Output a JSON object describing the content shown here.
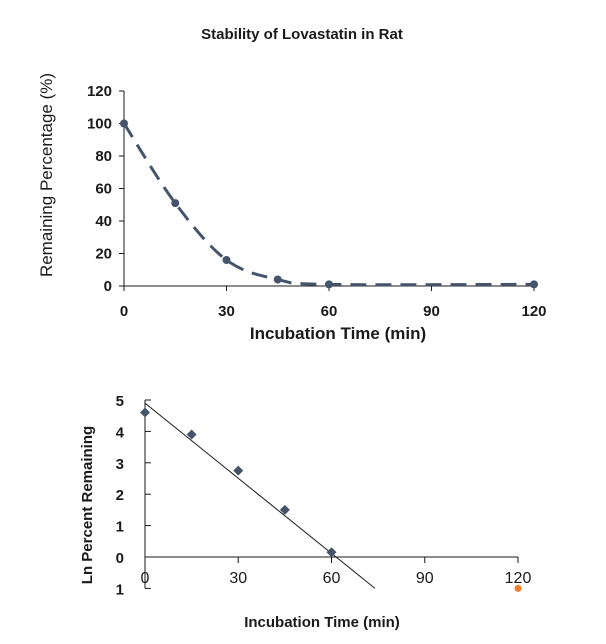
{
  "title": "Stability of Lovastatin in Rat",
  "chart_data": [
    {
      "type": "line",
      "title": "Stability of Lovastatin in Rat",
      "xlabel": "Incubation Time (min)",
      "ylabel": "Remaining Percentage (%)",
      "x": [
        0,
        15,
        30,
        45,
        60,
        120
      ],
      "series": [
        {
          "name": "Remaining Percentage",
          "values": [
            100,
            51,
            16,
            4,
            1,
            1
          ],
          "color": "#44546a",
          "line_style": "dashed"
        }
      ],
      "xlim": [
        0,
        120
      ],
      "ylim": [
        0,
        120
      ],
      "xticks": [
        0,
        30,
        60,
        90,
        120
      ],
      "yticks": [
        0,
        20,
        40,
        60,
        80,
        100,
        120
      ],
      "xtick_labels": [
        "0",
        "30",
        "60",
        "90",
        "120"
      ],
      "ytick_labels": [
        "0",
        "20",
        "40",
        "60",
        "80",
        "100",
        "120"
      ],
      "grid": false
    },
    {
      "type": "scatter",
      "xlabel": "Incubation Time (min)",
      "ylabel": "Ln Percent Remaining",
      "x": [
        0,
        15,
        30,
        45,
        60
      ],
      "series": [
        {
          "name": "Ln Percent Remaining",
          "values": [
            4.6,
            3.9,
            2.75,
            1.5,
            0.15
          ],
          "color": "#44546a",
          "marker": "diamond"
        }
      ],
      "trendline": {
        "x": [
          0,
          74
        ],
        "y": [
          4.9,
          -1.0
        ],
        "color": "#1a1a1a"
      },
      "extra_point": {
        "x": 120,
        "y": -1,
        "color": "#ed7d31"
      },
      "xlim": [
        0,
        120
      ],
      "ylim": [
        -1,
        5
      ],
      "xticks": [
        0,
        30,
        60,
        90,
        120
      ],
      "yticks": [
        -1,
        0,
        1,
        2,
        3,
        4,
        5
      ],
      "xtick_labels": [
        "0",
        "30",
        "60",
        "90",
        "120"
      ],
      "ytick_labels": [
        "1",
        "0",
        "1",
        "2",
        "3",
        "4",
        "5"
      ],
      "ytick_colors": [
        "#c00000",
        "#1a1a1a",
        "#1a1a1a",
        "#1a1a1a",
        "#1a1a1a",
        "#1a1a1a",
        "#1a1a1a"
      ],
      "grid": false
    }
  ]
}
